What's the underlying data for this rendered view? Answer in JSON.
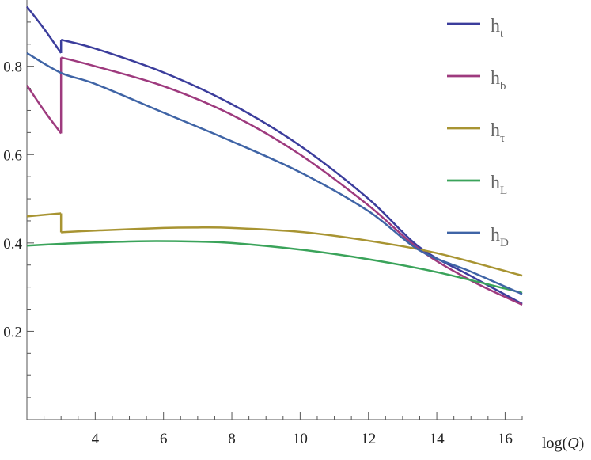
{
  "chart_data": {
    "type": "line",
    "xlabel": "log(",
    "xlabel_var": "Q",
    "xlabel_close": ")",
    "ylabel": "",
    "xlim": [
      2.0,
      16.5
    ],
    "ylim": [
      0.0,
      0.95
    ],
    "x_ticks": [
      4,
      6,
      8,
      10,
      12,
      14,
      16
    ],
    "x_tick_labels": [
      "4",
      "6",
      "8",
      "10",
      "12",
      "14",
      "16"
    ],
    "y_ticks": [
      0.2,
      0.4,
      0.6,
      0.8
    ],
    "y_tick_labels": [
      "0.2",
      "0.4",
      "0.6",
      "0.8"
    ],
    "grid": false,
    "legend_position": "top-right",
    "series": [
      {
        "name": "h_t",
        "label_main": "h",
        "label_sub": "t",
        "color": "#3b3d9c",
        "points": [
          [
            2.0,
            0.935
          ],
          [
            2.5,
            0.885
          ],
          [
            3.0,
            0.83
          ],
          [
            3.0,
            0.86
          ],
          [
            4,
            0.84
          ],
          [
            6,
            0.786
          ],
          [
            8,
            0.714
          ],
          [
            10,
            0.62
          ],
          [
            12,
            0.5
          ],
          [
            13.5,
            0.39
          ],
          [
            15,
            0.325
          ],
          [
            16.5,
            0.262
          ]
        ]
      },
      {
        "name": "h_b",
        "label_main": "h",
        "label_sub": "b",
        "color": "#9e3a7e",
        "points": [
          [
            2.0,
            0.757
          ],
          [
            2.5,
            0.7
          ],
          [
            3.0,
            0.648
          ],
          [
            3.0,
            0.82
          ],
          [
            4,
            0.8
          ],
          [
            6,
            0.755
          ],
          [
            8,
            0.69
          ],
          [
            10,
            0.6
          ],
          [
            12,
            0.485
          ],
          [
            13.5,
            0.385
          ],
          [
            15,
            0.315
          ],
          [
            16.5,
            0.26
          ]
        ]
      },
      {
        "name": "h_tau",
        "label_main": "h",
        "label_sub": "τ",
        "color": "#a89432",
        "points": [
          [
            2.0,
            0.46
          ],
          [
            3.0,
            0.467
          ],
          [
            3.0,
            0.424
          ],
          [
            4,
            0.428
          ],
          [
            6,
            0.434
          ],
          [
            7,
            0.435
          ],
          [
            8,
            0.434
          ],
          [
            10,
            0.425
          ],
          [
            12,
            0.405
          ],
          [
            14,
            0.377
          ],
          [
            16.5,
            0.326
          ]
        ]
      },
      {
        "name": "h_L",
        "label_main": "h",
        "label_sub": "L",
        "color": "#3aa35a",
        "points": [
          [
            2.0,
            0.394
          ],
          [
            3,
            0.398
          ],
          [
            4,
            0.401
          ],
          [
            5.5,
            0.404
          ],
          [
            7,
            0.403
          ],
          [
            8,
            0.4
          ],
          [
            10,
            0.385
          ],
          [
            12,
            0.363
          ],
          [
            14,
            0.334
          ],
          [
            16.5,
            0.287
          ]
        ]
      },
      {
        "name": "h_D",
        "label_main": "h",
        "label_sub": "D",
        "color": "#3f64a6",
        "points": [
          [
            2.0,
            0.83
          ],
          [
            3,
            0.785
          ],
          [
            4,
            0.76
          ],
          [
            6,
            0.695
          ],
          [
            8,
            0.63
          ],
          [
            10,
            0.56
          ],
          [
            12,
            0.472
          ],
          [
            13.5,
            0.383
          ],
          [
            15,
            0.335
          ],
          [
            16.5,
            0.284
          ]
        ]
      }
    ]
  }
}
